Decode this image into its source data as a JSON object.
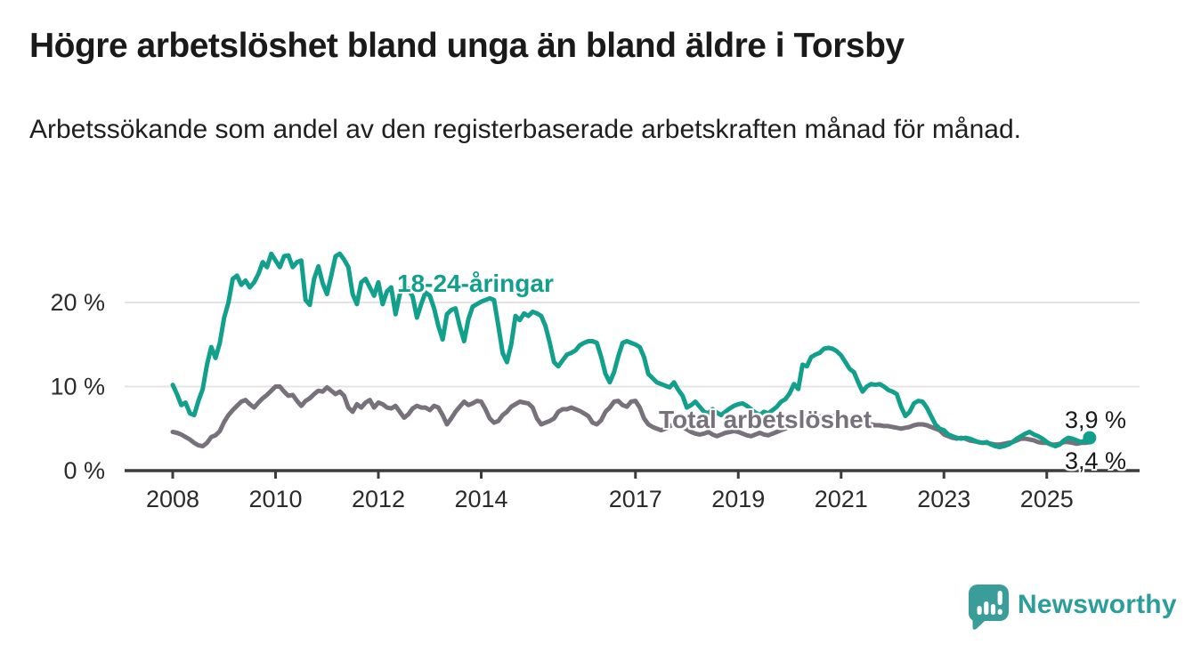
{
  "header": {
    "title": "Högre arbetslöshet bland unga än bland äldre i Torsby",
    "subtitle": "Arbetssökande som andel av den registerbaserade arbetskraften månad för månad."
  },
  "footer": {
    "brand": "Newsworthy"
  },
  "colors": {
    "youth_line": "#12a08c",
    "total_line": "#76717a",
    "axis": "#3c3c3c",
    "grid": "#e4e4e4",
    "tick_label": "#2b2b2b",
    "logo_teal": "#3a9d99"
  },
  "chart_data": {
    "type": "line",
    "unit": "%",
    "x_start": {
      "year": 2008,
      "month": 1
    },
    "x_end": {
      "year": 2025,
      "month": 11
    },
    "points_per_year": 12,
    "x_ticks": [
      2008,
      2010,
      2012,
      2014,
      2017,
      2019,
      2021,
      2023,
      2025
    ],
    "y_ticks": [
      {
        "value": 0,
        "label": "0 %"
      },
      {
        "value": 10,
        "label": "10 %"
      },
      {
        "value": 20,
        "label": "20 %"
      }
    ],
    "ylim": [
      0,
      27.5
    ],
    "grid": "horizontal",
    "series": [
      {
        "name": "Total arbetslöshet",
        "color": "#76717a",
        "end_label": "3,4 %",
        "end_dot": false,
        "values": [
          4.6,
          4.5,
          4.3,
          4.0,
          3.7,
          3.3,
          3.0,
          2.9,
          3.3,
          4.0,
          4.2,
          4.7,
          5.8,
          6.6,
          7.2,
          7.7,
          8.2,
          8.4,
          7.9,
          7.5,
          8.1,
          8.6,
          9.0,
          9.5,
          10.0,
          10.0,
          9.4,
          8.9,
          9.0,
          8.3,
          7.7,
          8.3,
          8.6,
          9.1,
          9.5,
          9.4,
          9.9,
          9.5,
          9.1,
          9.4,
          8.9,
          7.5,
          7.0,
          7.9,
          7.5,
          8.1,
          8.4,
          7.5,
          8.1,
          7.9,
          7.5,
          7.4,
          7.7,
          7.0,
          6.3,
          6.7,
          7.4,
          7.7,
          7.5,
          7.5,
          7.2,
          7.7,
          7.5,
          6.6,
          5.5,
          6.2,
          7.0,
          7.6,
          8.2,
          7.8,
          8.0,
          8.3,
          8.2,
          7.3,
          6.2,
          5.7,
          5.9,
          6.6,
          7.0,
          7.6,
          7.9,
          8.2,
          8.1,
          8.0,
          7.5,
          6.2,
          5.5,
          5.7,
          5.9,
          6.2,
          7.0,
          7.3,
          7.3,
          7.5,
          7.3,
          7.1,
          6.8,
          6.5,
          5.7,
          5.5,
          6.0,
          7.0,
          7.5,
          8.2,
          8.3,
          7.8,
          7.6,
          8.2,
          8.3,
          7.5,
          6.2,
          5.5,
          5.2,
          5.0,
          4.8,
          5.0,
          5.3,
          5.5,
          5.3,
          5.2,
          4.9,
          4.6,
          4.4,
          4.3,
          4.4,
          4.6,
          4.3,
          4.1,
          4.3,
          4.5,
          4.6,
          4.7,
          4.6,
          4.4,
          4.2,
          4.1,
          4.3,
          4.5,
          4.3,
          4.2,
          4.4,
          4.6,
          4.8,
          5.0,
          5.3,
          5.5,
          5.9,
          6.2,
          6.4,
          6.6,
          6.5,
          6.4,
          6.5,
          6.6,
          6.5,
          6.4,
          6.3,
          6.2,
          6.1,
          5.9,
          5.7,
          5.6,
          5.5,
          5.5,
          5.4,
          5.4,
          5.3,
          5.3,
          5.2,
          5.1,
          5.0,
          5.1,
          5.2,
          5.4,
          5.5,
          5.5,
          5.4,
          5.2,
          5.0,
          4.8,
          4.3,
          4.1,
          3.9,
          3.8,
          3.9,
          3.8,
          3.6,
          3.5,
          3.4,
          3.3,
          3.3,
          3.2,
          3.1,
          3.1,
          3.2,
          3.3,
          3.4,
          3.6,
          3.8,
          3.8,
          3.7,
          3.6,
          3.4,
          3.3,
          3.3,
          3.1,
          3.1,
          3.2,
          3.4,
          3.4,
          3.3,
          3.2,
          3.3,
          3.3,
          3.4
        ]
      },
      {
        "name": "18-24-åringar",
        "color": "#12a08c",
        "end_label": "3,9 %",
        "end_dot": true,
        "values": [
          10.2,
          9.1,
          7.8,
          8.1,
          6.8,
          6.6,
          8.3,
          9.7,
          12.6,
          14.7,
          13.4,
          15.2,
          18.2,
          20.0,
          22.8,
          23.2,
          22.1,
          22.6,
          21.8,
          22.4,
          23.4,
          24.8,
          24.2,
          25.8,
          25.0,
          24.2,
          25.5,
          25.6,
          24.2,
          24.8,
          25.0,
          20.3,
          19.7,
          22.8,
          24.3,
          22.3,
          21.0,
          23.2,
          25.5,
          25.8,
          25.1,
          24.2,
          21.0,
          19.8,
          22.4,
          22.8,
          21.8,
          20.8,
          22.4,
          19.8,
          21.3,
          21.8,
          18.6,
          21.0,
          22.1,
          21.6,
          20.7,
          18.2,
          19.8,
          21.2,
          20.8,
          19.3,
          17.2,
          15.6,
          18.6,
          19.1,
          19.3,
          17.2,
          15.4,
          18.0,
          19.5,
          19.8,
          20.1,
          20.3,
          20.5,
          20.3,
          17.2,
          14.0,
          12.9,
          15.0,
          18.4,
          17.9,
          18.7,
          18.4,
          18.9,
          18.7,
          18.4,
          17.2,
          15.2,
          12.9,
          12.4,
          13.1,
          13.8,
          14.0,
          14.3,
          14.9,
          15.2,
          15.4,
          15.4,
          15.2,
          13.5,
          11.5,
          10.5,
          11.7,
          13.6,
          15.2,
          15.4,
          15.2,
          15.0,
          14.7,
          13.5,
          11.5,
          11.0,
          10.5,
          10.3,
          10.1,
          9.9,
          10.5,
          9.6,
          8.9,
          7.5,
          7.8,
          8.2,
          7.6,
          7.0,
          6.8,
          7.3,
          6.9,
          6.6,
          7.0,
          7.4,
          7.7,
          7.9,
          8.0,
          7.7,
          7.3,
          6.9,
          6.6,
          7.0,
          6.8,
          7.2,
          7.6,
          8.2,
          8.5,
          9.2,
          10.3,
          9.7,
          12.6,
          12.4,
          13.5,
          13.8,
          14.0,
          14.5,
          14.6,
          14.5,
          14.2,
          13.7,
          12.9,
          12.1,
          11.7,
          10.5,
          9.4,
          10.0,
          10.3,
          10.2,
          10.3,
          10.0,
          9.6,
          9.4,
          9.1,
          7.6,
          6.5,
          7.0,
          8.0,
          8.3,
          8.2,
          7.5,
          6.5,
          5.5,
          5.0,
          4.8,
          4.3,
          4.1,
          3.9,
          3.8,
          3.9,
          3.8,
          3.6,
          3.4,
          3.3,
          3.4,
          3.1,
          2.9,
          2.8,
          2.9,
          3.1,
          3.4,
          3.8,
          4.1,
          4.4,
          4.6,
          4.3,
          4.1,
          3.8,
          3.4,
          3.1,
          2.9,
          3.1,
          3.6,
          3.9,
          3.8,
          3.6,
          3.4,
          3.6,
          3.9
        ]
      }
    ]
  }
}
